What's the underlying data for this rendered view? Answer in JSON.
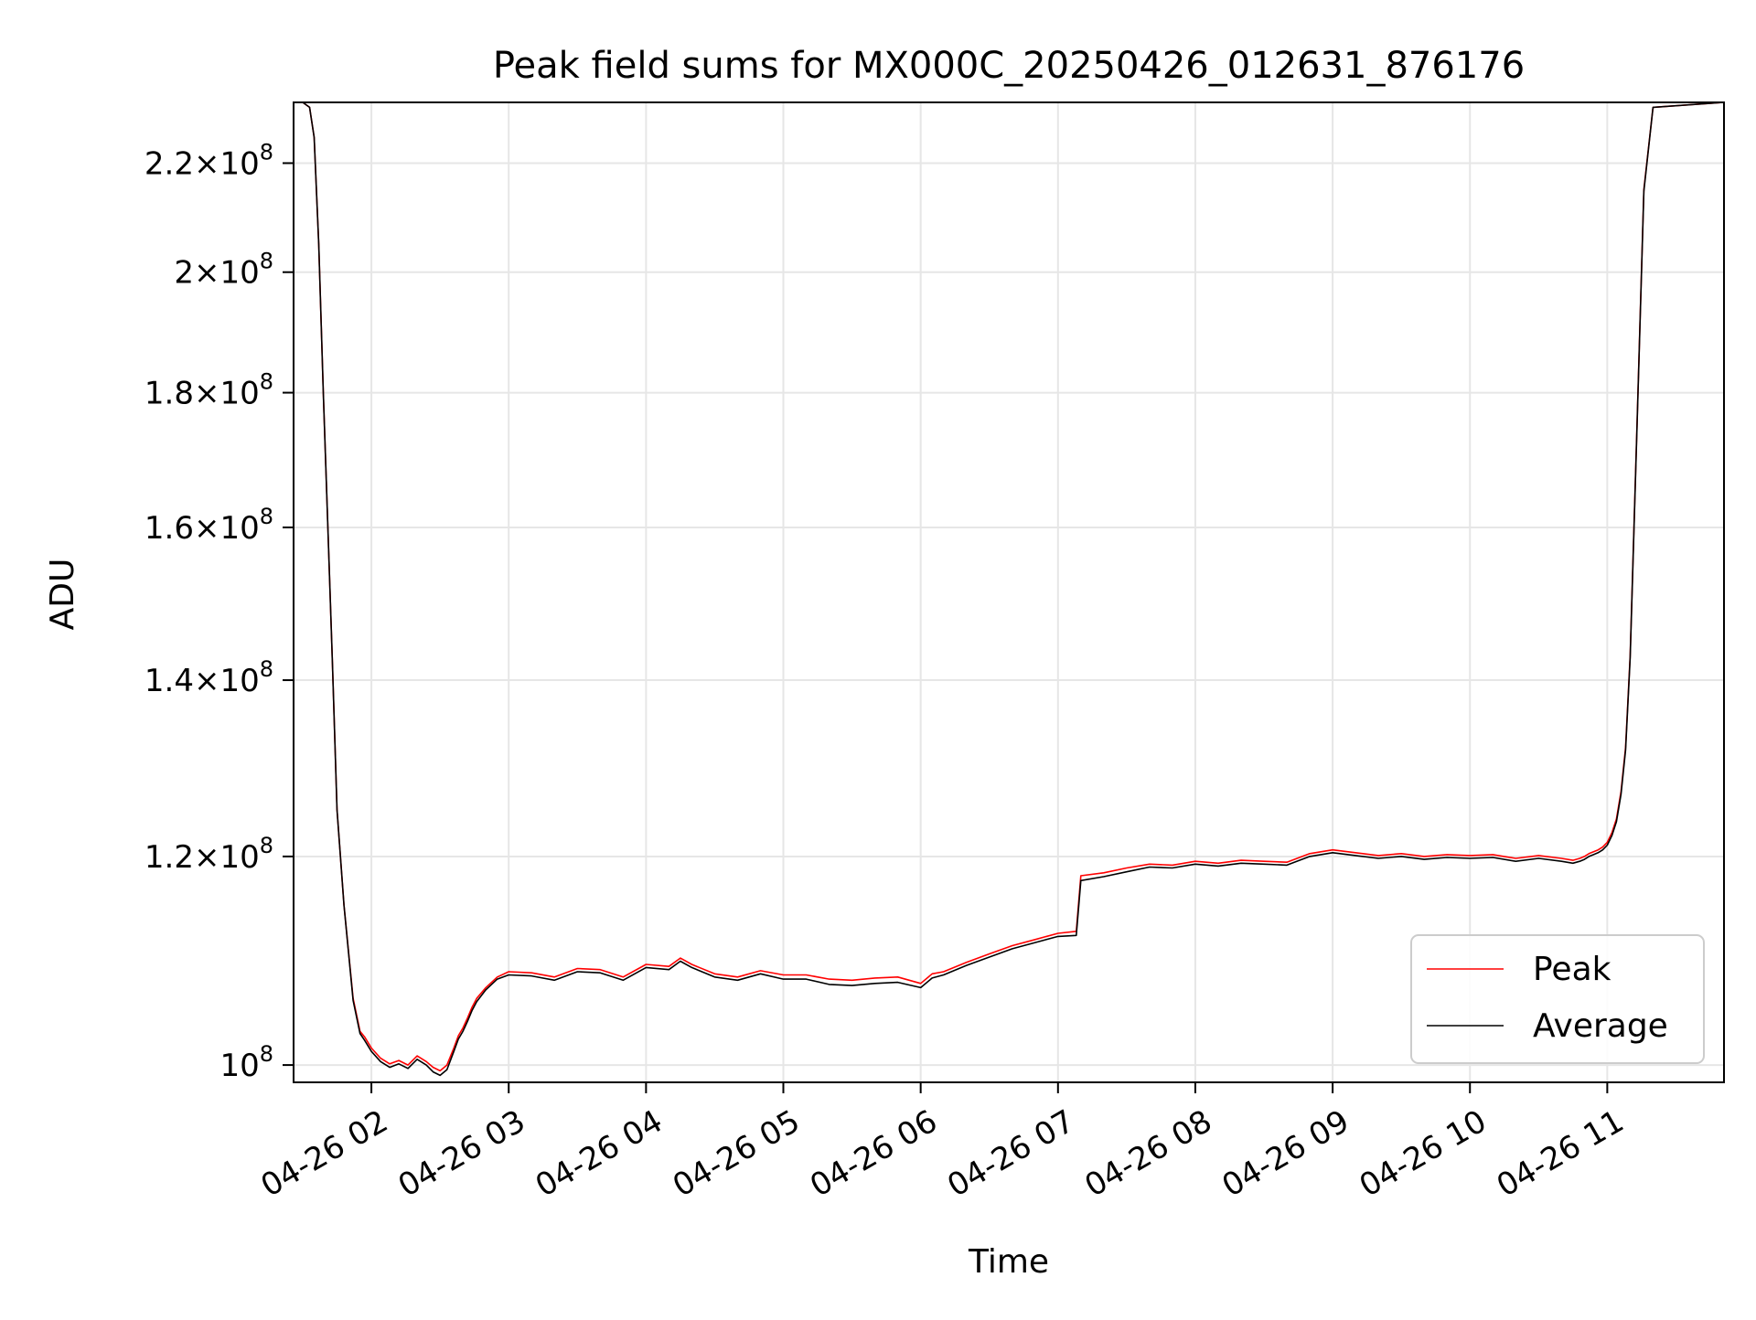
{
  "chart_data": {
    "type": "line",
    "title": "Peak field sums for MX000C_20250426_012631_876176",
    "xlabel": "Time",
    "ylabel": "ADU",
    "x_ticks": [
      "04-26 02",
      "04-26 03",
      "04-26 04",
      "04-26 05",
      "04-26 06",
      "04-26 07",
      "04-26 08",
      "04-26 09",
      "04-26 10",
      "04-26 11"
    ],
    "y_scale": "log",
    "y_ticks": [
      {
        "value": 100000000,
        "mant": "",
        "exp": "8"
      },
      {
        "value": 120000000,
        "mant": "1.2",
        "exp": "8"
      },
      {
        "value": 140000000,
        "mant": "1.4",
        "exp": "8"
      },
      {
        "value": 160000000,
        "mant": "1.6",
        "exp": "8"
      },
      {
        "value": 180000000,
        "mant": "1.8",
        "exp": "8"
      },
      {
        "value": 200000000,
        "mant": "2",
        "exp": "8"
      },
      {
        "value": 220000000,
        "mant": "2.2",
        "exp": "8"
      }
    ],
    "xlim": [
      "04-26 01:26",
      "04-26 11:51"
    ],
    "ylim": [
      98500000,
      232000000
    ],
    "grid": true,
    "legend_position": "lower-right",
    "series": [
      {
        "name": "Peak",
        "color": "#ff0000",
        "x": [
          "04-26 01:26",
          "04-26 01:30",
          "04-26 01:33",
          "04-26 01:35",
          "04-26 01:37",
          "04-26 01:39",
          "04-26 01:41",
          "04-26 01:43",
          "04-26 01:45",
          "04-26 01:48",
          "04-26 01:52",
          "04-26 01:55",
          "04-26 01:57",
          "04-26 02:00",
          "04-26 02:04",
          "04-26 02:08",
          "04-26 02:12",
          "04-26 02:16",
          "04-26 02:20",
          "04-26 02:24",
          "04-26 02:27",
          "04-26 02:30",
          "04-26 02:33",
          "04-26 02:36",
          "04-26 02:38",
          "04-26 02:40",
          "04-26 02:42",
          "04-26 02:44",
          "04-26 02:46",
          "04-26 02:50",
          "04-26 02:55",
          "04-26 03:00",
          "04-26 03:10",
          "04-26 03:20",
          "04-26 03:30",
          "04-26 03:40",
          "04-26 03:50",
          "04-26 04:00",
          "04-26 04:10",
          "04-26 04:15",
          "04-26 04:20",
          "04-26 04:30",
          "04-26 04:40",
          "04-26 04:50",
          "04-26 05:00",
          "04-26 05:10",
          "04-26 05:20",
          "04-26 05:30",
          "04-26 05:40",
          "04-26 05:50",
          "04-26 06:00",
          "04-26 06:05",
          "04-26 06:10",
          "04-26 06:20",
          "04-26 06:30",
          "04-26 06:40",
          "04-26 06:50",
          "04-26 07:00",
          "04-26 07:08",
          "04-26 07:10",
          "04-26 07:20",
          "04-26 07:30",
          "04-26 07:40",
          "04-26 07:50",
          "04-26 08:00",
          "04-26 08:10",
          "04-26 08:20",
          "04-26 08:30",
          "04-26 08:40",
          "04-26 08:50",
          "04-26 09:00",
          "04-26 09:10",
          "04-26 09:20",
          "04-26 09:30",
          "04-26 09:40",
          "04-26 09:50",
          "04-26 10:00",
          "04-26 10:10",
          "04-26 10:20",
          "04-26 10:30",
          "04-26 10:40",
          "04-26 10:45",
          "04-26 10:48",
          "04-26 10:50",
          "04-26 10:52",
          "04-26 10:54",
          "04-26 10:56",
          "04-26 10:58",
          "04-26 11:00",
          "04-26 11:02",
          "04-26 11:04",
          "04-26 11:06",
          "04-26 11:08",
          "04-26 11:10",
          "04-26 11:13",
          "04-26 11:16",
          "04-26 11:20",
          "04-26 11:51"
        ],
        "y": [
          232000000,
          232000000,
          231000000,
          225000000,
          205000000,
          180000000,
          160000000,
          142000000,
          125000000,
          115000000,
          106000000,
          103000000,
          102500000,
          101500000,
          100600000,
          100100000,
          100400000,
          100000000,
          100800000,
          100300000,
          99800000,
          99500000,
          100000000,
          101500000,
          102600000,
          103300000,
          104200000,
          105200000,
          106000000,
          107000000,
          108000000,
          108500000,
          108400000,
          108000000,
          108800000,
          108700000,
          108000000,
          109200000,
          109000000,
          109800000,
          109200000,
          108300000,
          108000000,
          108600000,
          108200000,
          108200000,
          107800000,
          107700000,
          107900000,
          108000000,
          107400000,
          108300000,
          108500000,
          109400000,
          110200000,
          111000000,
          111600000,
          112200000,
          112400000,
          118000000,
          118300000,
          118800000,
          119200000,
          119100000,
          119500000,
          119300000,
          119600000,
          119500000,
          119400000,
          120300000,
          120700000,
          120400000,
          120100000,
          120300000,
          120000000,
          120200000,
          120100000,
          120200000,
          119800000,
          120100000,
          119800000,
          119600000,
          119800000,
          120000000,
          120300000,
          120500000,
          120700000,
          121000000,
          121500000,
          122500000,
          124000000,
          127000000,
          132000000,
          143000000,
          175000000,
          215000000,
          231000000,
          232000000
        ]
      },
      {
        "name": "Average",
        "color": "#000000",
        "x": [
          "04-26 01:26",
          "04-26 01:30",
          "04-26 01:33",
          "04-26 01:35",
          "04-26 01:37",
          "04-26 01:39",
          "04-26 01:41",
          "04-26 01:43",
          "04-26 01:45",
          "04-26 01:48",
          "04-26 01:52",
          "04-26 01:55",
          "04-26 01:57",
          "04-26 02:00",
          "04-26 02:04",
          "04-26 02:08",
          "04-26 02:12",
          "04-26 02:16",
          "04-26 02:20",
          "04-26 02:24",
          "04-26 02:27",
          "04-26 02:30",
          "04-26 02:33",
          "04-26 02:36",
          "04-26 02:38",
          "04-26 02:40",
          "04-26 02:42",
          "04-26 02:44",
          "04-26 02:46",
          "04-26 02:50",
          "04-26 02:55",
          "04-26 03:00",
          "04-26 03:10",
          "04-26 03:20",
          "04-26 03:30",
          "04-26 03:40",
          "04-26 03:50",
          "04-26 04:00",
          "04-26 04:10",
          "04-26 04:15",
          "04-26 04:20",
          "04-26 04:30",
          "04-26 04:40",
          "04-26 04:50",
          "04-26 05:00",
          "04-26 05:10",
          "04-26 05:20",
          "04-26 05:30",
          "04-26 05:40",
          "04-26 05:50",
          "04-26 06:00",
          "04-26 06:05",
          "04-26 06:10",
          "04-26 06:20",
          "04-26 06:30",
          "04-26 06:40",
          "04-26 06:50",
          "04-26 07:00",
          "04-26 07:08",
          "04-26 07:10",
          "04-26 07:20",
          "04-26 07:30",
          "04-26 07:40",
          "04-26 07:50",
          "04-26 08:00",
          "04-26 08:10",
          "04-26 08:20",
          "04-26 08:30",
          "04-26 08:40",
          "04-26 08:50",
          "04-26 09:00",
          "04-26 09:10",
          "04-26 09:20",
          "04-26 09:30",
          "04-26 09:40",
          "04-26 09:50",
          "04-26 10:00",
          "04-26 10:10",
          "04-26 10:20",
          "04-26 10:30",
          "04-26 10:40",
          "04-26 10:45",
          "04-26 10:48",
          "04-26 10:50",
          "04-26 10:52",
          "04-26 10:54",
          "04-26 10:56",
          "04-26 10:58",
          "04-26 11:00",
          "04-26 11:02",
          "04-26 11:04",
          "04-26 11:06",
          "04-26 11:08",
          "04-26 11:10",
          "04-26 11:13",
          "04-26 11:16",
          "04-26 11:20",
          "04-26 11:51"
        ],
        "y": [
          232000000,
          232000000,
          231000000,
          225000000,
          205000000,
          180000000,
          160000000,
          142000000,
          125000000,
          115000000,
          105800000,
          102800000,
          102200000,
          101200000,
          100300000,
          99800000,
          100100000,
          99700000,
          100500000,
          100000000,
          99400000,
          99100000,
          99600000,
          101200000,
          102300000,
          103000000,
          103900000,
          104900000,
          105700000,
          106800000,
          107800000,
          108200000,
          108100000,
          107700000,
          108500000,
          108400000,
          107700000,
          108900000,
          108700000,
          109500000,
          108900000,
          108000000,
          107700000,
          108300000,
          107800000,
          107800000,
          107300000,
          107200000,
          107400000,
          107500000,
          107000000,
          107900000,
          108200000,
          109100000,
          109900000,
          110700000,
          111300000,
          111900000,
          112000000,
          117500000,
          117900000,
          118400000,
          118900000,
          118800000,
          119200000,
          119000000,
          119300000,
          119200000,
          119100000,
          120000000,
          120400000,
          120100000,
          119800000,
          120000000,
          119700000,
          119900000,
          119800000,
          119900000,
          119500000,
          119800000,
          119500000,
          119300000,
          119500000,
          119700000,
          120000000,
          120200000,
          120400000,
          120700000,
          121200000,
          122200000,
          123700000,
          126700000,
          131700000,
          142700000,
          174700000,
          214700000,
          231000000,
          232000000
        ]
      }
    ]
  }
}
